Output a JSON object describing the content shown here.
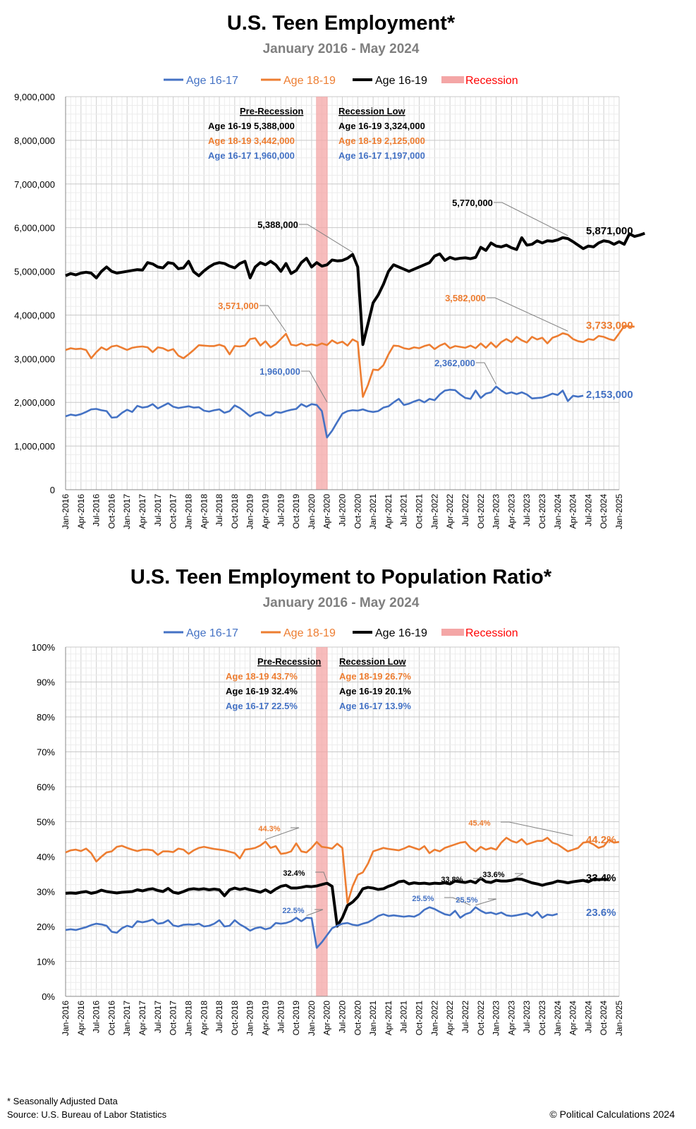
{
  "colors": {
    "age_16_17": "#4472c4",
    "age_18_19": "#ed7d31",
    "age_16_19": "#000000",
    "recession": "#ff0000",
    "recession_fill": "#f4a6a6"
  },
  "footer": {
    "footnote": "* Seasonally Adjusted Data",
    "source": "Source: U.S. Bureau of Labor Statistics",
    "copyright": "© Political Calculations 2024"
  },
  "chart_data": [
    {
      "type": "line",
      "title": "U.S. Teen Employment*",
      "subtitle": "January 2016 - May 2024",
      "legend": [
        "Age 16-17",
        "Age 18-19",
        "Age 16-19",
        "Recession"
      ],
      "legend_position": "top",
      "ylim": [
        0,
        9000000
      ],
      "yticks": [
        0,
        1000000,
        2000000,
        3000000,
        4000000,
        5000000,
        6000000,
        7000000,
        8000000,
        9000000
      ],
      "ytick_labels": [
        "0",
        "1,000,000",
        "2,000,000",
        "3,000,000",
        "4,000,000",
        "5,000,000",
        "6,000,000",
        "7,000,000",
        "8,000,000",
        "9,000,000"
      ],
      "xticks": [
        "Jan-2016",
        "Apr-2016",
        "Jul-2016",
        "Oct-2016",
        "Jan-2017",
        "Apr-2017",
        "Jul-2017",
        "Oct-2017",
        "Jan-2018",
        "Apr-2018",
        "Jul-2018",
        "Oct-2018",
        "Jan-2019",
        "Apr-2019",
        "Jul-2019",
        "Oct-2019",
        "Jan-2020",
        "Apr-2020",
        "Jul-2020",
        "Oct-2020",
        "Jan-2021",
        "Apr-2021",
        "Jul-2021",
        "Oct-2021",
        "Jan-2022",
        "Apr-2022",
        "Jul-2022",
        "Oct-2022",
        "Jan-2023",
        "Apr-2023",
        "Jul-2023",
        "Oct-2023",
        "Jan-2024",
        "Apr-2024",
        "Jul-2024",
        "Oct-2024",
        "Jan-2025"
      ],
      "recession": {
        "start_month_index": 49,
        "end_month_index": 51
      },
      "series": [
        {
          "name": "Age 16-19",
          "key": "age_16_19",
          "values": [
            4900000,
            4950000,
            4920000,
            4960000,
            4980000,
            4960000,
            4850000,
            5000000,
            5100000,
            5000000,
            4960000,
            4980000,
            5000000,
            5020000,
            5040000,
            5030000,
            5200000,
            5170000,
            5100000,
            5080000,
            5200000,
            5180000,
            5060000,
            5080000,
            5230000,
            4990000,
            4900000,
            5010000,
            5100000,
            5170000,
            5200000,
            5180000,
            5120000,
            5080000,
            5180000,
            5230000,
            4850000,
            5100000,
            5200000,
            5150000,
            5230000,
            5150000,
            5000000,
            5180000,
            4950000,
            5020000,
            5200000,
            5300000,
            5100000,
            5200000,
            5120000,
            5150000,
            5260000,
            5240000,
            5250000,
            5300000,
            5388000,
            5100000,
            3324000,
            3800000,
            4280000,
            4460000,
            4700000,
            5000000,
            5150000,
            5100000,
            5050000,
            5000000,
            5050000,
            5100000,
            5150000,
            5200000,
            5350000,
            5400000,
            5250000,
            5320000,
            5280000,
            5300000,
            5310000,
            5290000,
            5320000,
            5550000,
            5480000,
            5650000,
            5580000,
            5560000,
            5600000,
            5540000,
            5500000,
            5770000,
            5600000,
            5620000,
            5700000,
            5650000,
            5700000,
            5690000,
            5720000,
            5770000,
            5750000,
            5680000,
            5600000,
            5520000,
            5580000,
            5560000,
            5650000,
            5700000,
            5680000,
            5620000,
            5680000,
            5620000,
            5860000,
            5800000,
            5830000,
            5871000
          ]
        },
        {
          "name": "Age 18-19",
          "key": "age_18_19",
          "values": [
            3200000,
            3240000,
            3220000,
            3230000,
            3200000,
            3010000,
            3150000,
            3260000,
            3200000,
            3280000,
            3300000,
            3250000,
            3200000,
            3250000,
            3270000,
            3280000,
            3260000,
            3150000,
            3260000,
            3240000,
            3180000,
            3220000,
            3070000,
            3010000,
            3100000,
            3200000,
            3310000,
            3300000,
            3290000,
            3290000,
            3320000,
            3280000,
            3100000,
            3290000,
            3280000,
            3300000,
            3450000,
            3470000,
            3300000,
            3400000,
            3260000,
            3330000,
            3450000,
            3571000,
            3320000,
            3300000,
            3350000,
            3300000,
            3330000,
            3300000,
            3350000,
            3310000,
            3420000,
            3350000,
            3390000,
            3300000,
            3442000,
            3380000,
            2125000,
            2400000,
            2750000,
            2740000,
            2850000,
            3100000,
            3300000,
            3290000,
            3240000,
            3220000,
            3260000,
            3240000,
            3290000,
            3320000,
            3220000,
            3300000,
            3350000,
            3240000,
            3290000,
            3270000,
            3250000,
            3300000,
            3240000,
            3350000,
            3250000,
            3370000,
            3260000,
            3380000,
            3450000,
            3380000,
            3500000,
            3420000,
            3370000,
            3500000,
            3440000,
            3480000,
            3350000,
            3480000,
            3520000,
            3582000,
            3550000,
            3450000,
            3400000,
            3380000,
            3450000,
            3430000,
            3520000,
            3500000,
            3450000,
            3420000,
            3580000,
            3750000,
            3740000,
            3733000
          ]
        },
        {
          "name": "Age 16-17",
          "key": "age_16_17",
          "values": [
            1680000,
            1720000,
            1700000,
            1730000,
            1780000,
            1840000,
            1850000,
            1820000,
            1800000,
            1650000,
            1660000,
            1760000,
            1830000,
            1780000,
            1920000,
            1880000,
            1900000,
            1960000,
            1860000,
            1920000,
            1980000,
            1900000,
            1870000,
            1890000,
            1910000,
            1880000,
            1890000,
            1810000,
            1790000,
            1820000,
            1840000,
            1760000,
            1800000,
            1930000,
            1870000,
            1780000,
            1680000,
            1750000,
            1780000,
            1700000,
            1700000,
            1780000,
            1760000,
            1800000,
            1830000,
            1850000,
            1960000,
            1900000,
            1960000,
            1940000,
            1800000,
            1197000,
            1350000,
            1550000,
            1740000,
            1800000,
            1820000,
            1810000,
            1840000,
            1800000,
            1780000,
            1800000,
            1880000,
            1910000,
            2000000,
            2080000,
            1940000,
            1970000,
            2020000,
            2060000,
            2000000,
            2080000,
            2050000,
            2180000,
            2270000,
            2290000,
            2280000,
            2180000,
            2100000,
            2080000,
            2270000,
            2100000,
            2200000,
            2230000,
            2362000,
            2270000,
            2200000,
            2230000,
            2190000,
            2230000,
            2180000,
            2090000,
            2100000,
            2110000,
            2150000,
            2200000,
            2170000,
            2270000,
            2030000,
            2150000,
            2130000,
            2153000
          ]
        }
      ],
      "annotations": {
        "pre_recession": {
          "heading": "Pre-Recession",
          "age_16_19": "Age 16-19 5,388,000",
          "age_18_19": "Age 18-19 3,442,000",
          "age_16_17": "Age 16-17 1,960,000"
        },
        "recession_low": {
          "heading": "Recession Low",
          "age_16_19": "Age 16-19 3,324,000",
          "age_18_19": "Age 18-19 2,125,000",
          "age_16_17": "Age 16-17 1,197,000"
        },
        "callouts": [
          {
            "text": "5,388,000",
            "series": "age_16_19"
          },
          {
            "text": "5,770,000",
            "series": "age_16_19"
          },
          {
            "text": "3,571,000",
            "series": "age_18_19"
          },
          {
            "text": "3,582,000",
            "series": "age_18_19"
          },
          {
            "text": "1,960,000",
            "series": "age_16_17"
          },
          {
            "text": "2,362,000",
            "series": "age_16_17"
          }
        ],
        "end_labels": {
          "age_16_19": "5,871,000",
          "age_18_19": "3,733,000",
          "age_16_17": "2,153,000"
        }
      }
    },
    {
      "type": "line",
      "title": "U.S. Teen Employment to Population Ratio*",
      "subtitle": "January 2016 - May 2024",
      "legend": [
        "Age 16-17",
        "Age 18-19",
        "Age 16-19",
        "Recession"
      ],
      "legend_position": "top",
      "ylim": [
        0,
        100
      ],
      "yticks": [
        0,
        10,
        20,
        30,
        40,
        50,
        60,
        70,
        80,
        90,
        100
      ],
      "ytick_labels": [
        "0%",
        "10%",
        "20%",
        "30%",
        "40%",
        "50%",
        "60%",
        "70%",
        "80%",
        "90%",
        "100%"
      ],
      "xticks": [
        "Jan-2016",
        "Apr-2016",
        "Jul-2016",
        "Oct-2016",
        "Jan-2017",
        "Apr-2017",
        "Jul-2017",
        "Oct-2017",
        "Jan-2018",
        "Apr-2018",
        "Jul-2018",
        "Oct-2018",
        "Jan-2019",
        "Apr-2019",
        "Jul-2019",
        "Oct-2019",
        "Jan-2020",
        "Apr-2020",
        "Jul-2020",
        "Oct-2020",
        "Jan-2021",
        "Apr-2021",
        "Jul-2021",
        "Oct-2021",
        "Jan-2022",
        "Apr-2022",
        "Jul-2022",
        "Oct-2022",
        "Jan-2023",
        "Apr-2023",
        "Jul-2023",
        "Oct-2023",
        "Jan-2024",
        "Apr-2024",
        "Jul-2024",
        "Oct-2024",
        "Jan-2025"
      ],
      "recession": {
        "start_month_index": 49,
        "end_month_index": 51
      },
      "series": [
        {
          "name": "Age 18-19",
          "key": "age_18_19",
          "values": [
            41.2,
            41.8,
            42.0,
            41.6,
            42.3,
            41.0,
            38.6,
            40.0,
            41.2,
            41.5,
            42.8,
            43.1,
            42.5,
            42.0,
            41.6,
            42.0,
            42.0,
            41.8,
            40.5,
            41.5,
            41.5,
            41.3,
            42.3,
            42.0,
            40.8,
            41.8,
            42.5,
            42.8,
            42.5,
            42.2,
            42.0,
            41.8,
            41.4,
            41.0,
            39.5,
            42.0,
            42.2,
            42.5,
            43.2,
            44.3,
            42.5,
            43.0,
            40.8,
            41.0,
            41.5,
            43.8,
            41.5,
            41.2,
            42.5,
            44.2,
            42.8,
            42.6,
            42.3,
            43.7,
            42.5,
            26.7,
            31.5,
            34.8,
            35.5,
            38.0,
            41.5,
            42.0,
            42.5,
            42.2,
            42.0,
            41.8,
            42.3,
            43.0,
            42.5,
            42.0,
            43.0,
            41.0,
            42.0,
            41.5,
            42.5,
            43.0,
            43.5,
            44.0,
            44.2,
            42.5,
            41.5,
            42.8,
            42.0,
            42.5,
            42.0,
            44.0,
            45.4,
            44.5,
            44.0,
            45.0,
            43.5,
            44.0,
            44.5,
            44.5,
            45.4,
            44.0,
            43.5,
            42.5,
            41.5,
            42.0,
            42.5,
            44.0,
            44.2,
            43.5,
            42.5,
            43.0,
            44.8,
            44.0,
            44.2
          ]
        },
        {
          "name": "Age 16-19",
          "key": "age_16_19",
          "values": [
            29.5,
            29.6,
            29.5,
            29.8,
            30.0,
            29.5,
            29.8,
            30.4,
            30.0,
            29.8,
            29.6,
            29.8,
            29.9,
            30.0,
            30.5,
            30.2,
            30.6,
            30.8,
            30.3,
            30.0,
            30.9,
            29.8,
            29.5,
            30.0,
            30.6,
            30.8,
            30.6,
            30.8,
            30.5,
            30.7,
            30.5,
            28.8,
            30.5,
            31.0,
            30.6,
            30.9,
            30.5,
            30.2,
            29.8,
            30.5,
            29.7,
            30.7,
            31.5,
            31.8,
            31.0,
            31.0,
            31.2,
            31.5,
            31.4,
            31.6,
            32.0,
            32.4,
            31.5,
            20.1,
            22.5,
            26.0,
            27.0,
            28.5,
            30.8,
            31.2,
            31.0,
            30.6,
            30.8,
            31.5,
            32.0,
            32.8,
            33.0,
            32.2,
            32.5,
            32.3,
            32.4,
            32.2,
            32.4,
            32.3,
            32.5,
            32.2,
            33.0,
            32.8,
            32.6,
            33.0,
            32.5,
            33.8,
            32.8,
            32.6,
            33.2,
            33.0,
            33.0,
            33.2,
            33.6,
            33.5,
            33.0,
            32.5,
            32.2,
            31.8,
            32.2,
            32.5,
            33.0,
            32.8,
            32.5,
            32.8,
            33.0,
            33.2,
            32.8,
            33.5,
            33.4,
            33.5,
            33.4
          ]
        },
        {
          "name": "Age 16-17",
          "key": "age_16_17",
          "values": [
            19.0,
            19.2,
            19.0,
            19.4,
            19.8,
            20.4,
            20.8,
            20.6,
            20.2,
            18.5,
            18.2,
            19.5,
            20.2,
            19.8,
            21.5,
            21.2,
            21.5,
            22.0,
            20.8,
            21.0,
            21.8,
            20.3,
            20.0,
            20.5,
            20.6,
            20.5,
            20.8,
            20.0,
            20.2,
            20.8,
            21.8,
            20.0,
            20.2,
            21.8,
            20.6,
            19.8,
            18.8,
            19.5,
            19.8,
            19.2,
            19.6,
            21.0,
            20.8,
            21.0,
            21.5,
            22.5,
            21.5,
            22.5,
            22.4,
            13.9,
            15.5,
            17.5,
            19.5,
            20.2,
            20.8,
            21.0,
            20.5,
            20.3,
            20.8,
            21.2,
            22.0,
            23.0,
            23.5,
            23.0,
            23.2,
            23.0,
            22.8,
            23.0,
            22.8,
            23.5,
            24.8,
            25.5,
            25.0,
            24.2,
            23.5,
            23.2,
            24.5,
            22.5,
            23.5,
            24.0,
            25.5,
            24.5,
            23.8,
            24.0,
            23.5,
            24.0,
            23.2,
            23.0,
            23.2,
            23.5,
            23.8,
            23.0,
            24.2,
            22.5,
            23.4,
            23.2,
            23.6
          ]
        }
      ],
      "annotations": {
        "pre_recession": {
          "heading": "Pre-Recession",
          "age_18_19": "Age 18-19 43.7%",
          "age_16_19": "Age 16-19 32.4%",
          "age_16_17": "Age 16-17 22.5%"
        },
        "recession_low": {
          "heading": "Recession Low",
          "age_18_19": "Age 18-19 26.7%",
          "age_16_19": "Age 16-19 20.1%",
          "age_16_17": "Age 16-17 13.9%"
        },
        "callouts": [
          {
            "text": "44.3%",
            "series": "age_18_19"
          },
          {
            "text": "45.4%",
            "series": "age_18_19"
          },
          {
            "text": "32.4%",
            "series": "age_16_19"
          },
          {
            "text": "33.8%",
            "series": "age_16_19"
          },
          {
            "text": "33.6%",
            "series": "age_16_19"
          },
          {
            "text": "22.5%",
            "series": "age_16_17"
          },
          {
            "text": "25.5%",
            "series": "age_16_17"
          },
          {
            "text": "25.5%",
            "series": "age_16_17"
          }
        ],
        "end_labels": {
          "age_18_19": "44.2%",
          "age_16_19": "33.4%",
          "age_16_17": "23.6%"
        }
      }
    }
  ]
}
